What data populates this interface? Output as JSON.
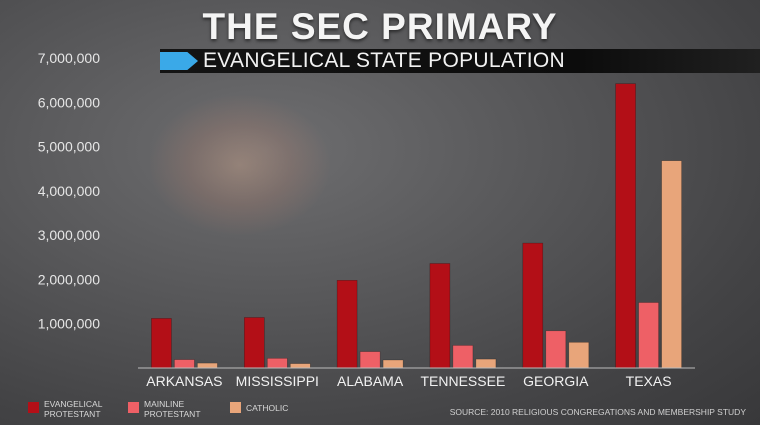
{
  "header": {
    "title": "THE SEC PRIMARY",
    "subtitle": "EVANGELICAL STATE POPULATION"
  },
  "source": "SOURCE: 2010 RELIGIOUS CONGREGATIONS AND MEMBERSHIP STUDY",
  "colors": {
    "evangelical": "#b30f17",
    "mainline": "#ee6066",
    "catholic": "#e8a57a",
    "axis_text": "#e6e6e6",
    "category_text": "#f2f2f2"
  },
  "chart_data": {
    "type": "bar",
    "title": "EVANGELICAL STATE POPULATION",
    "categories": [
      "ARKANSAS",
      "MISSISSIPPI",
      "ALABAMA",
      "TENNESSEE",
      "GEORGIA",
      "TEXAS"
    ],
    "series": [
      {
        "name": "EVANGELICAL\nPROTESTANT",
        "values": [
          1120000,
          1140000,
          1980000,
          2360000,
          2820000,
          6420000
        ]
      },
      {
        "name": "MAINLINE\nPROTESTANT",
        "values": [
          190000,
          220000,
          370000,
          510000,
          840000,
          1480000
        ]
      },
      {
        "name": "CATHOLIC",
        "values": [
          110000,
          100000,
          180000,
          200000,
          580000,
          4680000
        ]
      }
    ],
    "yticks": [
      "1,000,000",
      "2,000,000",
      "3,000,000",
      "4,000,000",
      "5,000,000",
      "6,000,000",
      "7,000,000"
    ],
    "ytick_values": [
      1000000,
      2000000,
      3000000,
      4000000,
      5000000,
      6000000,
      7000000
    ],
    "ylim": [
      0,
      7000000
    ],
    "grid": false,
    "legend_position": "bottom-left"
  }
}
